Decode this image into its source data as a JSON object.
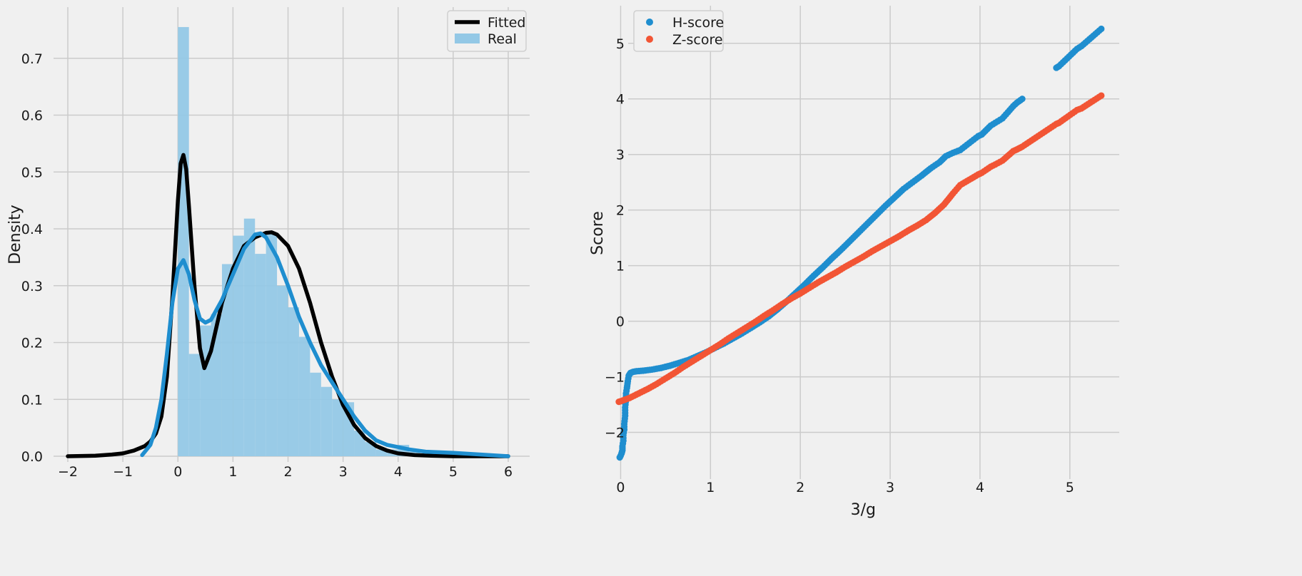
{
  "chart_data": [
    {
      "type": "histogram+kde",
      "ylabel": "Density",
      "xlabel": "",
      "xlim": [
        -2,
        6
      ],
      "ylim": [
        0,
        0.78
      ],
      "xticks": [
        -2,
        -1,
        0,
        1,
        2,
        3,
        4,
        5,
        6
      ],
      "yticks": [
        0.0,
        0.1,
        0.2,
        0.3,
        0.4,
        0.5,
        0.6,
        0.7
      ],
      "grid": true,
      "legend": {
        "position": "top-right",
        "entries": [
          {
            "label": "Fitted",
            "kind": "line",
            "color": "#000000"
          },
          {
            "label": "Real",
            "kind": "patch",
            "color": "#93c8e6"
          }
        ]
      },
      "histogram": {
        "name": "Real",
        "color": "#93c8e6",
        "bin_width": 0.2,
        "bin_starts": [
          0.0,
          0.2,
          0.4,
          0.6,
          0.8,
          1.0,
          1.2,
          1.4,
          1.6,
          1.8,
          2.0,
          2.2,
          2.4,
          2.6,
          2.8,
          3.0,
          3.2,
          3.4,
          3.6,
          3.8,
          4.0,
          4.2
        ],
        "densities": [
          0.755,
          0.18,
          0.23,
          0.25,
          0.338,
          0.388,
          0.418,
          0.356,
          0.393,
          0.3,
          0.262,
          0.21,
          0.147,
          0.122,
          0.1,
          0.095,
          0.045,
          0.025,
          0.012,
          0.012,
          0.02,
          0.008
        ]
      },
      "series": [
        {
          "name": "Fitted",
          "color": "#000000",
          "x": [
            -2,
            -1.5,
            -1.2,
            -1.0,
            -0.8,
            -0.6,
            -0.5,
            -0.4,
            -0.3,
            -0.2,
            -0.1,
            0.0,
            0.05,
            0.1,
            0.15,
            0.2,
            0.3,
            0.4,
            0.48,
            0.6,
            0.8,
            1.0,
            1.2,
            1.4,
            1.6,
            1.7,
            1.8,
            2.0,
            2.2,
            2.4,
            2.6,
            2.8,
            3.0,
            3.2,
            3.4,
            3.6,
            3.8,
            4.0,
            4.3,
            4.6,
            5.0,
            5.5,
            6.0
          ],
          "y": [
            0.0,
            0.001,
            0.003,
            0.005,
            0.01,
            0.018,
            0.026,
            0.04,
            0.07,
            0.14,
            0.28,
            0.45,
            0.515,
            0.53,
            0.505,
            0.44,
            0.3,
            0.19,
            0.155,
            0.185,
            0.27,
            0.33,
            0.37,
            0.385,
            0.393,
            0.394,
            0.39,
            0.37,
            0.33,
            0.27,
            0.2,
            0.14,
            0.09,
            0.055,
            0.032,
            0.018,
            0.01,
            0.005,
            0.002,
            0.001,
            0.0,
            0.0,
            0.0
          ]
        },
        {
          "name": "",
          "color": "#1f8ecf",
          "x": [
            -0.65,
            -0.5,
            -0.4,
            -0.3,
            -0.2,
            -0.1,
            0.0,
            0.1,
            0.2,
            0.3,
            0.4,
            0.5,
            0.6,
            0.8,
            1.0,
            1.2,
            1.4,
            1.5,
            1.6,
            1.8,
            2.0,
            2.2,
            2.4,
            2.6,
            2.8,
            3.0,
            3.2,
            3.4,
            3.6,
            3.8,
            4.0,
            4.2,
            4.5,
            5.0,
            5.5,
            6.0
          ],
          "y": [
            0.002,
            0.02,
            0.05,
            0.1,
            0.18,
            0.27,
            0.33,
            0.345,
            0.32,
            0.275,
            0.242,
            0.235,
            0.24,
            0.275,
            0.32,
            0.365,
            0.39,
            0.392,
            0.385,
            0.35,
            0.3,
            0.245,
            0.2,
            0.16,
            0.13,
            0.1,
            0.07,
            0.045,
            0.028,
            0.02,
            0.016,
            0.012,
            0.008,
            0.006,
            0.003,
            0.0
          ]
        }
      ]
    },
    {
      "type": "scatter",
      "xlabel": "3/g",
      "ylabel": "Score",
      "xlim": [
        -0.25,
        5.55
      ],
      "ylim": [
        -2.75,
        5.6
      ],
      "xticks": [
        0,
        1,
        2,
        3,
        4,
        5
      ],
      "yticks": [
        -2,
        -1,
        0,
        1,
        2,
        3,
        4,
        5
      ],
      "grid": true,
      "legend": {
        "position": "top-left",
        "entries": [
          {
            "label": "H-score",
            "kind": "marker",
            "color": "#1f8ecf"
          },
          {
            "label": "Z-score",
            "kind": "marker",
            "color": "#f25535"
          }
        ]
      },
      "series": [
        {
          "name": "H-score",
          "color": "#1f8ecf",
          "points": [
            [
              -0.01,
              -2.45
            ],
            [
              0.0,
              -2.42
            ],
            [
              0.01,
              -2.38
            ],
            [
              0.02,
              -2.32
            ],
            [
              0.02,
              -2.25
            ],
            [
              0.03,
              -2.15
            ],
            [
              0.03,
              -2.05
            ],
            [
              0.04,
              -1.95
            ],
            [
              0.04,
              -1.85
            ],
            [
              0.05,
              -1.7
            ],
            [
              0.05,
              -1.55
            ],
            [
              0.06,
              -1.4
            ],
            [
              0.06,
              -1.3
            ],
            [
              0.07,
              -1.2
            ],
            [
              0.08,
              -1.08
            ],
            [
              0.09,
              -0.98
            ],
            [
              0.11,
              -0.93
            ],
            [
              0.14,
              -0.91
            ],
            [
              0.18,
              -0.9
            ],
            [
              0.25,
              -0.89
            ],
            [
              0.35,
              -0.87
            ],
            [
              0.45,
              -0.84
            ],
            [
              0.55,
              -0.8
            ],
            [
              0.65,
              -0.75
            ],
            [
              0.75,
              -0.7
            ],
            [
              0.85,
              -0.63
            ],
            [
              0.95,
              -0.56
            ],
            [
              1.05,
              -0.48
            ],
            [
              1.15,
              -0.4
            ],
            [
              1.25,
              -0.31
            ],
            [
              1.35,
              -0.22
            ],
            [
              1.45,
              -0.12
            ],
            [
              1.55,
              -0.02
            ],
            [
              1.65,
              0.09
            ],
            [
              1.75,
              0.22
            ],
            [
              1.85,
              0.36
            ],
            [
              1.95,
              0.51
            ],
            [
              2.05,
              0.66
            ],
            [
              2.15,
              0.82
            ],
            [
              2.25,
              0.97
            ],
            [
              2.35,
              1.13
            ],
            [
              2.45,
              1.28
            ],
            [
              2.55,
              1.44
            ],
            [
              2.65,
              1.6
            ],
            [
              2.75,
              1.76
            ],
            [
              2.85,
              1.92
            ],
            [
              2.95,
              2.08
            ],
            [
              3.05,
              2.23
            ],
            [
              3.15,
              2.38
            ],
            [
              3.25,
              2.5
            ],
            [
              3.35,
              2.62
            ],
            [
              3.45,
              2.75
            ],
            [
              3.55,
              2.86
            ],
            [
              3.62,
              2.97
            ],
            [
              3.7,
              3.03
            ],
            [
              3.78,
              3.08
            ],
            [
              3.98,
              3.33
            ],
            [
              4.02,
              3.36
            ],
            [
              4.12,
              3.52
            ],
            [
              4.17,
              3.57
            ],
            [
              4.25,
              3.65
            ],
            [
              4.37,
              3.87
            ],
            [
              4.41,
              3.93
            ],
            [
              4.47,
              4.0
            ],
            [
              4.85,
              4.56
            ],
            [
              4.88,
              4.59
            ],
            [
              5.08,
              4.9
            ],
            [
              5.13,
              4.95
            ],
            [
              5.35,
              5.26
            ]
          ]
        },
        {
          "name": "Z-score",
          "color": "#f25535",
          "points": [
            [
              -0.02,
              -1.45
            ],
            [
              0.0,
              -1.44
            ],
            [
              0.05,
              -1.41
            ],
            [
              0.1,
              -1.38
            ],
            [
              0.2,
              -1.3
            ],
            [
              0.3,
              -1.22
            ],
            [
              0.4,
              -1.13
            ],
            [
              0.5,
              -1.03
            ],
            [
              0.6,
              -0.93
            ],
            [
              0.7,
              -0.82
            ],
            [
              0.8,
              -0.72
            ],
            [
              0.9,
              -0.62
            ],
            [
              1.0,
              -0.52
            ],
            [
              1.1,
              -0.42
            ],
            [
              1.2,
              -0.31
            ],
            [
              1.3,
              -0.21
            ],
            [
              1.4,
              -0.11
            ],
            [
              1.5,
              -0.01
            ],
            [
              1.6,
              0.1
            ],
            [
              1.7,
              0.2
            ],
            [
              1.8,
              0.31
            ],
            [
              1.9,
              0.41
            ],
            [
              2.0,
              0.5
            ],
            [
              2.1,
              0.6
            ],
            [
              2.2,
              0.7
            ],
            [
              2.3,
              0.79
            ],
            [
              2.4,
              0.88
            ],
            [
              2.5,
              0.98
            ],
            [
              2.6,
              1.07
            ],
            [
              2.7,
              1.16
            ],
            [
              2.8,
              1.26
            ],
            [
              2.9,
              1.35
            ],
            [
              3.0,
              1.44
            ],
            [
              3.1,
              1.53
            ],
            [
              3.2,
              1.63
            ],
            [
              3.3,
              1.72
            ],
            [
              3.4,
              1.82
            ],
            [
              3.5,
              1.95
            ],
            [
              3.6,
              2.1
            ],
            [
              3.7,
              2.3
            ],
            [
              3.78,
              2.45
            ],
            [
              3.98,
              2.64
            ],
            [
              4.02,
              2.67
            ],
            [
              4.12,
              2.78
            ],
            [
              4.17,
              2.82
            ],
            [
              4.25,
              2.89
            ],
            [
              4.37,
              3.06
            ],
            [
              4.41,
              3.09
            ],
            [
              4.47,
              3.14
            ],
            [
              4.85,
              3.55
            ],
            [
              4.88,
              3.57
            ],
            [
              5.08,
              3.8
            ],
            [
              5.13,
              3.83
            ],
            [
              5.35,
              4.06
            ]
          ]
        }
      ]
    }
  ]
}
